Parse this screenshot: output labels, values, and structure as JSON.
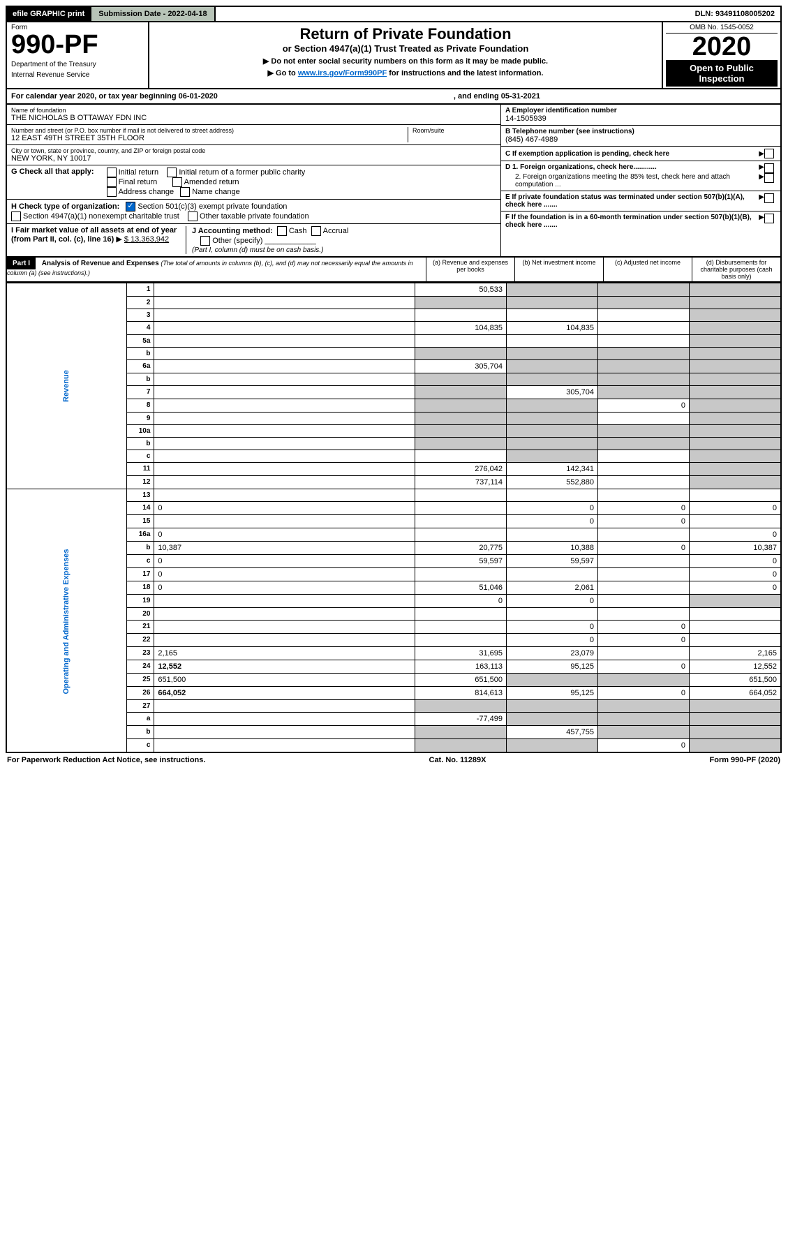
{
  "topbar": {
    "efile": "efile GRAPHIC print",
    "submission": "Submission Date - 2022-04-18",
    "dln": "DLN: 93491108005202"
  },
  "header": {
    "form_label": "Form",
    "form_number": "990-PF",
    "dept1": "Department of the Treasury",
    "dept2": "Internal Revenue Service",
    "title": "Return of Private Foundation",
    "subtitle": "or Section 4947(a)(1) Trust Treated as Private Foundation",
    "instr1": "▶ Do not enter social security numbers on this form as it may be made public.",
    "instr2_pre": "▶ Go to ",
    "instr2_link": "www.irs.gov/Form990PF",
    "instr2_post": " for instructions and the latest information.",
    "omb": "OMB No. 1545-0052",
    "year": "2020",
    "open": "Open to Public Inspection"
  },
  "calyear": {
    "text": "For calendar year 2020, or tax year beginning 06-01-2020",
    "ending": ", and ending 05-31-2021"
  },
  "info": {
    "name_lbl": "Name of foundation",
    "name": "THE NICHOLAS B OTTAWAY FDN INC",
    "addr_lbl": "Number and street (or P.O. box number if mail is not delivered to street address)",
    "addr": "12 EAST 49TH STREET 35TH FLOOR",
    "room_lbl": "Room/suite",
    "city_lbl": "City or town, state or province, country, and ZIP or foreign postal code",
    "city": "NEW YORK, NY  10017",
    "ein_lbl": "A Employer identification number",
    "ein": "14-1505939",
    "phone_lbl": "B Telephone number (see instructions)",
    "phone": "(845) 467-4989",
    "c_lbl": "C If exemption application is pending, check here",
    "d1_lbl": "D 1. Foreign organizations, check here............",
    "d2_lbl": "2. Foreign organizations meeting the 85% test, check here and attach computation ...",
    "e_lbl": "E  If private foundation status was terminated under section 507(b)(1)(A), check here .......",
    "f_lbl": "F  If the foundation is in a 60-month termination under section 507(b)(1)(B), check here .......",
    "g_lbl": "G Check all that apply:",
    "g_initial": "Initial return",
    "g_initial_pub": "Initial return of a former public charity",
    "g_final": "Final return",
    "g_amended": "Amended return",
    "g_addr": "Address change",
    "g_name": "Name change",
    "h_lbl": "H Check type of organization:",
    "h_501c3": "Section 501(c)(3) exempt private foundation",
    "h_4947": "Section 4947(a)(1) nonexempt charitable trust",
    "h_other": "Other taxable private foundation",
    "i_lbl": "I Fair market value of all assets at end of year (from Part II, col. (c), line 16)",
    "i_val": "$  13,363,942",
    "j_lbl": "J Accounting method:",
    "j_cash": "Cash",
    "j_accrual": "Accrual",
    "j_other": "Other (specify)",
    "j_note": "(Part I, column (d) must be on cash basis.)"
  },
  "part1": {
    "label": "Part I",
    "title": "Analysis of Revenue and Expenses",
    "note": "(The total of amounts in columns (b), (c), and (d) may not necessarily equal the amounts in column (a) (see instructions).)",
    "cols": {
      "a": "(a) Revenue and expenses per books",
      "b": "(b) Net investment income",
      "c": "(c) Adjusted net income",
      "d": "(d) Disbursements for charitable purposes (cash basis only)"
    }
  },
  "sidelabels": {
    "revenue": "Revenue",
    "expenses": "Operating and Administrative Expenses"
  },
  "rows": [
    {
      "n": "1",
      "d": "",
      "a": "50,533",
      "b": "",
      "c": "",
      "grey_b": true,
      "grey_c": true,
      "grey_d": true
    },
    {
      "n": "2",
      "d": "",
      "a": "",
      "b": "",
      "c": "",
      "grey_a": true,
      "grey_b": true,
      "grey_c": true,
      "grey_d": true
    },
    {
      "n": "3",
      "d": "",
      "a": "",
      "b": "",
      "c": "",
      "grey_d": true
    },
    {
      "n": "4",
      "d": "",
      "a": "104,835",
      "b": "104,835",
      "c": "",
      "grey_d": true
    },
    {
      "n": "5a",
      "d": "",
      "a": "",
      "b": "",
      "c": "",
      "grey_d": true
    },
    {
      "n": "b",
      "d": "",
      "a": "",
      "b": "",
      "c": "",
      "grey_a": true,
      "grey_b": true,
      "grey_c": true,
      "grey_d": true
    },
    {
      "n": "6a",
      "d": "",
      "a": "305,704",
      "b": "",
      "c": "",
      "grey_b": true,
      "grey_c": true,
      "grey_d": true
    },
    {
      "n": "b",
      "d": "",
      "a": "",
      "b": "",
      "c": "",
      "grey_a": true,
      "grey_b": true,
      "grey_c": true,
      "grey_d": true
    },
    {
      "n": "7",
      "d": "",
      "a": "",
      "b": "305,704",
      "c": "",
      "grey_a": true,
      "grey_c": true,
      "grey_d": true
    },
    {
      "n": "8",
      "d": "",
      "a": "",
      "b": "",
      "c": "0",
      "grey_a": true,
      "grey_b": true,
      "grey_d": true
    },
    {
      "n": "9",
      "d": "",
      "a": "",
      "b": "",
      "c": "",
      "grey_a": true,
      "grey_b": true,
      "grey_d": true
    },
    {
      "n": "10a",
      "d": "",
      "a": "",
      "b": "",
      "c": "",
      "grey_a": true,
      "grey_b": true,
      "grey_c": true,
      "grey_d": true
    },
    {
      "n": "b",
      "d": "",
      "a": "",
      "b": "",
      "c": "",
      "grey_a": true,
      "grey_b": true,
      "grey_c": true,
      "grey_d": true
    },
    {
      "n": "c",
      "d": "",
      "a": "",
      "b": "",
      "c": "",
      "grey_b": true,
      "grey_d": true
    },
    {
      "n": "11",
      "d": "",
      "a": "276,042",
      "b": "142,341",
      "c": "",
      "grey_d": true
    },
    {
      "n": "12",
      "d": "",
      "a": "737,114",
      "b": "552,880",
      "c": "",
      "bold": true,
      "grey_d": true
    },
    {
      "n": "13",
      "d": "",
      "a": "",
      "b": "",
      "c": ""
    },
    {
      "n": "14",
      "d": "0",
      "a": "",
      "b": "0",
      "c": "0"
    },
    {
      "n": "15",
      "d": "",
      "a": "",
      "b": "0",
      "c": "0"
    },
    {
      "n": "16a",
      "d": "0",
      "a": "",
      "b": "",
      "c": ""
    },
    {
      "n": "b",
      "d": "10,387",
      "a": "20,775",
      "b": "10,388",
      "c": "0"
    },
    {
      "n": "c",
      "d": "0",
      "a": "59,597",
      "b": "59,597",
      "c": ""
    },
    {
      "n": "17",
      "d": "0",
      "a": "",
      "b": "",
      "c": ""
    },
    {
      "n": "18",
      "d": "0",
      "a": "51,046",
      "b": "2,061",
      "c": ""
    },
    {
      "n": "19",
      "d": "",
      "a": "0",
      "b": "0",
      "c": "",
      "grey_d": true
    },
    {
      "n": "20",
      "d": "",
      "a": "",
      "b": "",
      "c": ""
    },
    {
      "n": "21",
      "d": "",
      "a": "",
      "b": "0",
      "c": "0"
    },
    {
      "n": "22",
      "d": "",
      "a": "",
      "b": "0",
      "c": "0"
    },
    {
      "n": "23",
      "d": "2,165",
      "a": "31,695",
      "b": "23,079",
      "c": ""
    },
    {
      "n": "24",
      "d": "12,552",
      "a": "163,113",
      "b": "95,125",
      "c": "0",
      "bold": true
    },
    {
      "n": "25",
      "d": "651,500",
      "a": "651,500",
      "b": "",
      "c": "",
      "grey_b": true,
      "grey_c": true
    },
    {
      "n": "26",
      "d": "664,052",
      "a": "814,613",
      "b": "95,125",
      "c": "0",
      "bold": true
    },
    {
      "n": "27",
      "d": "",
      "a": "",
      "b": "",
      "c": "",
      "grey_a": true,
      "grey_b": true,
      "grey_c": true,
      "grey_d": true
    },
    {
      "n": "a",
      "d": "",
      "a": "-77,499",
      "b": "",
      "c": "",
      "bold": true,
      "grey_b": true,
      "grey_c": true,
      "grey_d": true
    },
    {
      "n": "b",
      "d": "",
      "a": "",
      "b": "457,755",
      "c": "",
      "bold": true,
      "grey_a": true,
      "grey_c": true,
      "grey_d": true
    },
    {
      "n": "c",
      "d": "",
      "a": "",
      "b": "",
      "c": "0",
      "bold": true,
      "grey_a": true,
      "grey_b": true,
      "grey_d": true
    }
  ],
  "footer": {
    "paperwork": "For Paperwork Reduction Act Notice, see instructions.",
    "cat": "Cat. No. 11289X",
    "form": "Form 990-PF (2020)"
  }
}
